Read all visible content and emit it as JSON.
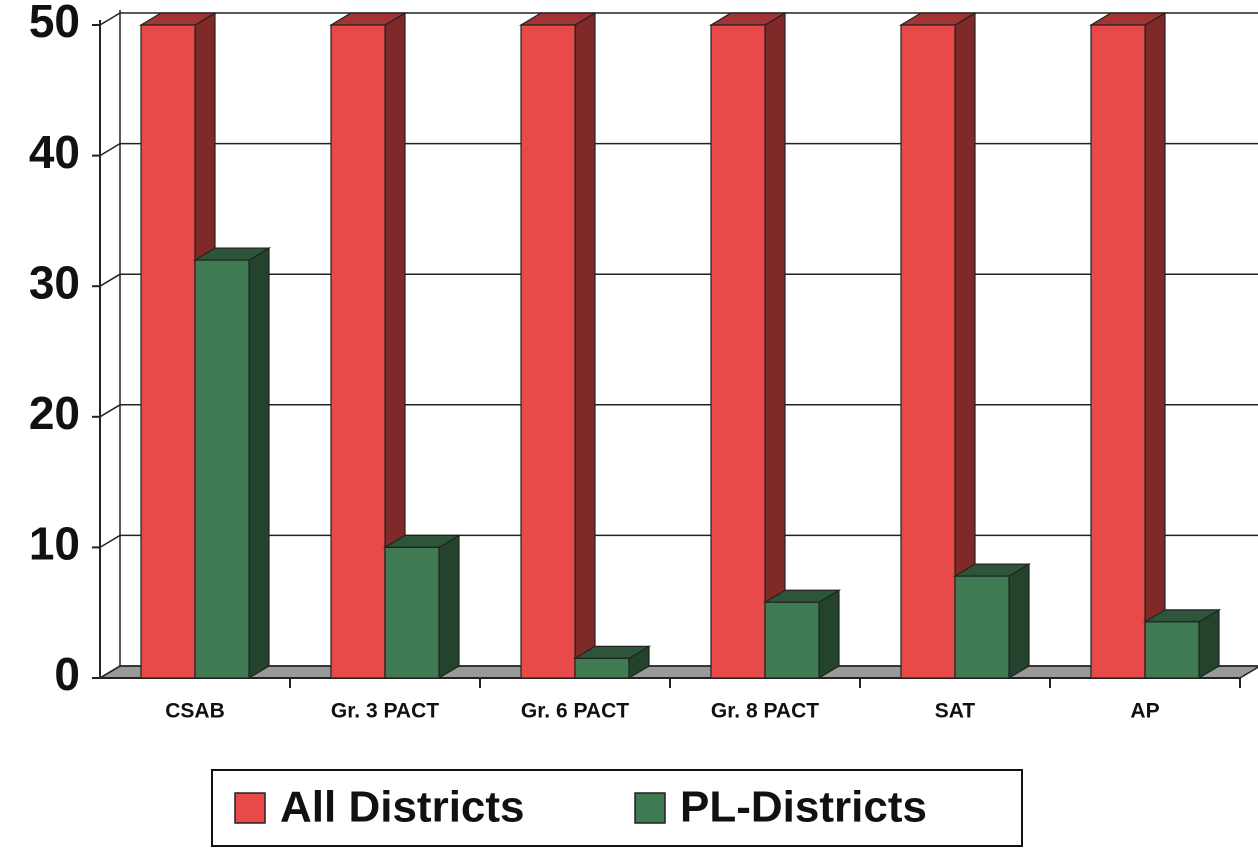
{
  "chart_data": {
    "type": "bar3d",
    "categories": [
      "CSAB",
      "Gr. 3 PACT",
      "Gr. 6 PACT",
      "Gr. 8 PACT",
      "SAT",
      "AP"
    ],
    "series": [
      {
        "name": "All Districts",
        "color": "#e84a4a",
        "values": [
          50,
          50,
          50,
          50,
          50,
          50
        ]
      },
      {
        "name": "PL-Districts",
        "color": "#3f7a52",
        "values": [
          32,
          10,
          1.5,
          5.8,
          7.8,
          4.3
        ]
      }
    ],
    "ylim": [
      0,
      50
    ],
    "yticks": [
      0,
      10,
      20,
      30,
      40,
      50
    ],
    "grid": true
  }
}
